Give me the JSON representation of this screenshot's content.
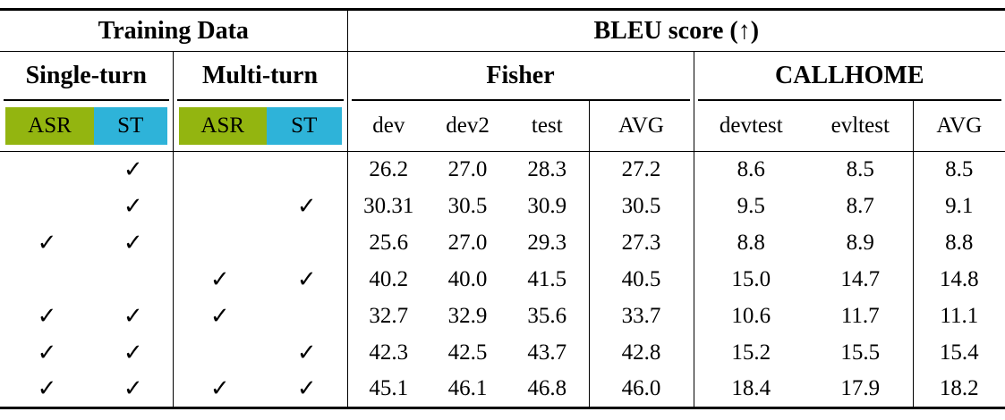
{
  "colors": {
    "asr_green": "#93b510",
    "st_cyan": "#2eb3d9",
    "rule_black": "#000000",
    "background": "#ffffff"
  },
  "header": {
    "training_data": "Training Data",
    "bleu_score": "BLEU score (↑)",
    "single_turn": "Single-turn",
    "multi_turn": "Multi-turn",
    "fisher": "Fisher",
    "callhome": "CALLHOME",
    "col_labels": [
      "ASR",
      "ST",
      "ASR",
      "ST",
      "dev",
      "dev2",
      "test",
      "AVG",
      "devtest",
      "evltest",
      "AVG"
    ]
  },
  "checkmark_glyph": "✓",
  "rows": [
    {
      "checks": [
        false,
        true,
        false,
        false
      ],
      "values": [
        "26.2",
        "27.0",
        "28.3",
        "27.2",
        "8.6",
        "8.5",
        "8.5"
      ]
    },
    {
      "checks": [
        false,
        true,
        false,
        true
      ],
      "values": [
        "30.31",
        "30.5",
        "30.9",
        "30.5",
        "9.5",
        "8.7",
        "9.1"
      ]
    },
    {
      "checks": [
        true,
        true,
        false,
        false
      ],
      "values": [
        "25.6",
        "27.0",
        "29.3",
        "27.3",
        "8.8",
        "8.9",
        "8.8"
      ]
    },
    {
      "checks": [
        false,
        false,
        true,
        true
      ],
      "values": [
        "40.2",
        "40.0",
        "41.5",
        "40.5",
        "15.0",
        "14.7",
        "14.8"
      ]
    },
    {
      "checks": [
        true,
        true,
        true,
        false
      ],
      "values": [
        "32.7",
        "32.9",
        "35.6",
        "33.7",
        "10.6",
        "11.7",
        "11.1"
      ]
    },
    {
      "checks": [
        true,
        true,
        false,
        true
      ],
      "values": [
        "42.3",
        "42.5",
        "43.7",
        "42.8",
        "15.2",
        "15.5",
        "15.4"
      ]
    },
    {
      "checks": [
        true,
        true,
        true,
        true
      ],
      "values": [
        "45.1",
        "46.1",
        "46.8",
        "46.0",
        "18.4",
        "17.9",
        "18.2"
      ]
    }
  ],
  "chart_data": {
    "type": "table",
    "title": "BLEU score (↑) by training data configuration",
    "column_groups": [
      "Training Data: Single-turn (ASR, ST)",
      "Training Data: Multi-turn (ASR, ST)",
      "Fisher (dev, dev2, test, AVG)",
      "CALLHOME (devtest, evltest, AVG)"
    ],
    "columns": [
      "single_asr",
      "single_st",
      "multi_asr",
      "multi_st",
      "fisher_dev",
      "fisher_dev2",
      "fisher_test",
      "fisher_avg",
      "callhome_devtest",
      "callhome_evltest",
      "callhome_avg"
    ],
    "values": [
      [
        0,
        1,
        0,
        0,
        26.2,
        27.0,
        28.3,
        27.2,
        8.6,
        8.5,
        8.5
      ],
      [
        0,
        1,
        0,
        1,
        30.31,
        30.5,
        30.9,
        30.5,
        9.5,
        8.7,
        9.1
      ],
      [
        1,
        1,
        0,
        0,
        25.6,
        27.0,
        29.3,
        27.3,
        8.8,
        8.9,
        8.8
      ],
      [
        0,
        0,
        1,
        1,
        40.2,
        40.0,
        41.5,
        40.5,
        15.0,
        14.7,
        14.8
      ],
      [
        1,
        1,
        1,
        0,
        32.7,
        32.9,
        35.6,
        33.7,
        10.6,
        11.7,
        11.1
      ],
      [
        1,
        1,
        0,
        1,
        42.3,
        42.5,
        43.7,
        42.8,
        15.2,
        15.5,
        15.4
      ],
      [
        1,
        1,
        1,
        1,
        45.1,
        46.1,
        46.8,
        46.0,
        18.4,
        17.9,
        18.2
      ]
    ]
  }
}
